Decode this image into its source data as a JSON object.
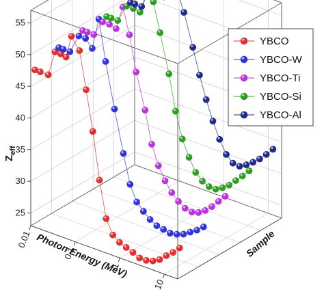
{
  "chart_data": {
    "type": "scatter",
    "title": "",
    "xlabel": "Photon Energy (MeV)",
    "ylabel": "Sample",
    "zlabel_main": "Z",
    "zlabel_sub": "eff",
    "x_ticks": [
      "0.01",
      "0.1",
      "1",
      "10"
    ],
    "z_ticks": [
      "25",
      "30",
      "35",
      "40",
      "45",
      "50",
      "55"
    ],
    "zlim": [
      23,
      57
    ],
    "legend_position": "top-right",
    "grid": true,
    "series": [
      {
        "name": "YBCO",
        "color": "#e0302f",
        "log_energy": [
          -2.0,
          -1.88,
          -1.7,
          -1.55,
          -1.42,
          -1.3,
          -1.18,
          -1.0,
          -0.85,
          -0.7,
          -0.55,
          -0.4,
          -0.25,
          -0.1,
          0.05,
          0.2,
          0.35,
          0.5,
          0.65,
          0.8,
          0.95,
          1.1,
          1.25
        ],
        "zeff": [
          47.2,
          47.2,
          47.2,
          51.2,
          51.2,
          51.0,
          54.6,
          52.8,
          47.0,
          40.8,
          33.5,
          27.8,
          25.6,
          24.8,
          24.4,
          24.0,
          23.5,
          23.5,
          23.8,
          24.4,
          25.4,
          26.3,
          27.4
        ]
      },
      {
        "name": "YBCO-W",
        "color": "#3333dd",
        "log_energy": [
          -2.0,
          -1.9,
          -1.75,
          -1.55,
          -1.4,
          -1.25,
          -1.1,
          -0.95,
          -0.75,
          -0.55,
          -0.4,
          -0.25,
          -0.1,
          0.05,
          0.2,
          0.35,
          0.5,
          0.65,
          0.8,
          0.95,
          1.1,
          1.25
        ],
        "zeff": [
          48.5,
          48.5,
          48.5,
          51.5,
          51.5,
          50.3,
          55.3,
          49.0,
          42.0,
          35.5,
          31.0,
          28.6,
          27.5,
          26.6,
          26.0,
          25.8,
          25.6,
          25.8,
          26.2,
          26.9,
          27.6,
          28.5
        ]
      },
      {
        "name": "YBCO-Ti",
        "color": "#bb33dd",
        "log_energy": [
          -2.0,
          -1.9,
          -1.75,
          -1.55,
          -1.4,
          -1.25,
          -1.1,
          -0.95,
          -0.8,
          -0.6,
          -0.45,
          -0.3,
          -0.15,
          0.0,
          0.15,
          0.3,
          0.45,
          0.6,
          0.75,
          0.9,
          1.05,
          1.2
        ],
        "zeff": [
          49.0,
          49.0,
          49.0,
          51.5,
          51.5,
          51.2,
          55.0,
          51.0,
          45.5,
          40.0,
          35.0,
          32.0,
          30.0,
          28.5,
          27.5,
          26.8,
          26.6,
          26.9,
          27.6,
          28.6,
          29.8,
          31.0
        ]
      },
      {
        "name": "YBCO-Si",
        "color": "#2e9e22",
        "log_energy": [
          -2.0,
          -1.9,
          -1.75,
          -1.55,
          -1.4,
          -1.25,
          -1.1,
          -0.95,
          -0.8,
          -0.6,
          -0.45,
          -0.3,
          -0.15,
          0.0,
          0.15,
          0.3,
          0.45,
          0.6,
          0.75,
          0.9,
          1.05,
          1.2
        ],
        "zeff": [
          49.0,
          49.0,
          49.0,
          51.8,
          51.8,
          51.6,
          55.1,
          54.0,
          49.5,
          43.5,
          38.0,
          34.0,
          31.5,
          29.5,
          28.5,
          28.0,
          28.0,
          28.6,
          29.4,
          30.5,
          31.6,
          32.8
        ]
      },
      {
        "name": "YBCO-Al",
        "color": "#1f2a8c",
        "log_energy": [
          -2.0,
          -1.9,
          -1.75,
          -1.55,
          -1.4,
          -1.25,
          -1.1,
          -0.95,
          -0.8,
          -0.6,
          -0.45,
          -0.3,
          -0.15,
          0.0,
          0.15,
          0.3,
          0.45,
          0.6,
          0.75,
          0.9,
          1.05,
          1.2
        ],
        "zeff": [
          49.0,
          49.0,
          49.0,
          52.3,
          52.1,
          51.8,
          55.4,
          53.5,
          50.5,
          45.5,
          41.5,
          38.0,
          35.0,
          32.5,
          30.5,
          29.5,
          29.4,
          30.0,
          30.8,
          31.7,
          32.8,
          34.0
        ]
      }
    ]
  }
}
